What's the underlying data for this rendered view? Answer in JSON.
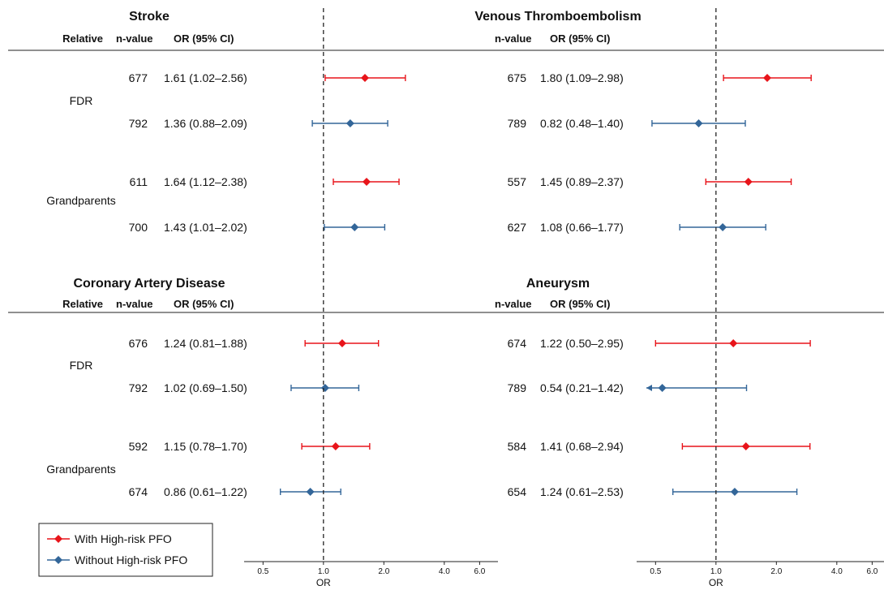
{
  "colors": {
    "with_high_risk_pfo": "#e8141a",
    "without_high_risk_pfo": "#336699",
    "reference_line": "#222222"
  },
  "legend": {
    "items": [
      {
        "label": "With High-risk PFO",
        "color": "#e8141a",
        "marker": "diamond"
      },
      {
        "label": "Without High-risk PFO",
        "color": "#336699",
        "marker": "diamond"
      }
    ]
  },
  "chart_data": [
    {
      "type": "forest",
      "title": "Stroke",
      "headers": {
        "relative": "Relative",
        "n": "n-value",
        "or": "OR (95% CI)"
      },
      "x_scale": "log",
      "xlim": [
        0.45,
        6.5
      ],
      "xticks": [
        "0.5",
        "1.0",
        "2.0",
        "4.0",
        "6.0"
      ],
      "xlabel": "OR",
      "reference": 1.0,
      "groups": [
        {
          "label": "FDR",
          "rows": [
            {
              "series": "With High-risk PFO",
              "n": "677",
              "ci_text": "1.61 (1.02–2.56)",
              "or": 1.61,
              "lo": 1.02,
              "hi": 2.56
            },
            {
              "series": "Without High-risk PFO",
              "n": "792",
              "ci_text": "1.36 (0.88–2.09)",
              "or": 1.36,
              "lo": 0.88,
              "hi": 2.09
            }
          ]
        },
        {
          "label": "Grandparents",
          "rows": [
            {
              "series": "With High-risk PFO",
              "n": "611",
              "ci_text": "1.64 (1.12–2.38)",
              "or": 1.64,
              "lo": 1.12,
              "hi": 2.38
            },
            {
              "series": "Without High-risk PFO",
              "n": "700",
              "ci_text": "1.43 (1.01–2.02)",
              "or": 1.43,
              "lo": 1.01,
              "hi": 2.02
            }
          ]
        }
      ]
    },
    {
      "type": "forest",
      "title": "Venous Thromboembolism",
      "headers": {
        "relative": "",
        "n": "n-value",
        "or": "OR (95% CI)"
      },
      "x_scale": "log",
      "xlim": [
        0.45,
        6.5
      ],
      "xticks": [
        "0.5",
        "1.0",
        "2.0",
        "4.0",
        "6.0"
      ],
      "xlabel": "OR",
      "reference": 1.0,
      "groups": [
        {
          "label": "",
          "rows": [
            {
              "series": "With High-risk PFO",
              "n": "675",
              "ci_text": "1.80 (1.09–2.98)",
              "or": 1.8,
              "lo": 1.09,
              "hi": 2.98
            },
            {
              "series": "Without High-risk PFO",
              "n": "789",
              "ci_text": "0.82 (0.48–1.40)",
              "or": 0.82,
              "lo": 0.48,
              "hi": 1.4
            }
          ]
        },
        {
          "label": "",
          "rows": [
            {
              "series": "With High-risk PFO",
              "n": "557",
              "ci_text": "1.45 (0.89–2.37)",
              "or": 1.45,
              "lo": 0.89,
              "hi": 2.37
            },
            {
              "series": "Without High-risk PFO",
              "n": "627",
              "ci_text": "1.08 (0.66–1.77)",
              "or": 1.08,
              "lo": 0.66,
              "hi": 1.77
            }
          ]
        }
      ]
    },
    {
      "type": "forest",
      "title": "Coronary Artery Disease",
      "headers": {
        "relative": "Relative",
        "n": "n-value",
        "or": "OR (95% CI)"
      },
      "x_scale": "log",
      "xlim": [
        0.45,
        6.5
      ],
      "xticks": [
        "0.5",
        "1.0",
        "2.0",
        "4.0",
        "6.0"
      ],
      "xlabel": "OR",
      "reference": 1.0,
      "groups": [
        {
          "label": "FDR",
          "rows": [
            {
              "series": "With High-risk PFO",
              "n": "676",
              "ci_text": "1.24 (0.81–1.88)",
              "or": 1.24,
              "lo": 0.81,
              "hi": 1.88
            },
            {
              "series": "Without High-risk PFO",
              "n": "792",
              "ci_text": "1.02 (0.69–1.50)",
              "or": 1.02,
              "lo": 0.69,
              "hi": 1.5
            }
          ]
        },
        {
          "label": "Grandparents",
          "rows": [
            {
              "series": "With High-risk PFO",
              "n": "592",
              "ci_text": "1.15 (0.78–1.70)",
              "or": 1.15,
              "lo": 0.78,
              "hi": 1.7
            },
            {
              "series": "Without High-risk PFO",
              "n": "674",
              "ci_text": "0.86 (0.61–1.22)",
              "or": 0.86,
              "lo": 0.61,
              "hi": 1.22
            }
          ]
        }
      ]
    },
    {
      "type": "forest",
      "title": "Aneurysm",
      "headers": {
        "relative": "",
        "n": "n-value",
        "or": "OR (95% CI)"
      },
      "x_scale": "log",
      "xlim": [
        0.45,
        6.5
      ],
      "xticks": [
        "0.5",
        "1.0",
        "2.0",
        "4.0",
        "6.0"
      ],
      "xlabel": "OR",
      "reference": 1.0,
      "groups": [
        {
          "label": "",
          "rows": [
            {
              "series": "With High-risk PFO",
              "n": "674",
              "ci_text": "1.22 (0.50–2.95)",
              "or": 1.22,
              "lo": 0.5,
              "hi": 2.95
            },
            {
              "series": "Without High-risk PFO",
              "n": "789",
              "ci_text": "0.54 (0.21–1.42)",
              "or": 0.54,
              "lo": 0.21,
              "hi": 1.42
            }
          ]
        },
        {
          "label": "",
          "rows": [
            {
              "series": "With High-risk PFO",
              "n": "584",
              "ci_text": "1.41 (0.68–2.94)",
              "or": 1.41,
              "lo": 0.68,
              "hi": 2.94
            },
            {
              "series": "Without High-risk PFO",
              "n": "654",
              "ci_text": "1.24 (0.61–2.53)",
              "or": 1.24,
              "lo": 0.61,
              "hi": 2.53
            }
          ]
        }
      ]
    }
  ]
}
